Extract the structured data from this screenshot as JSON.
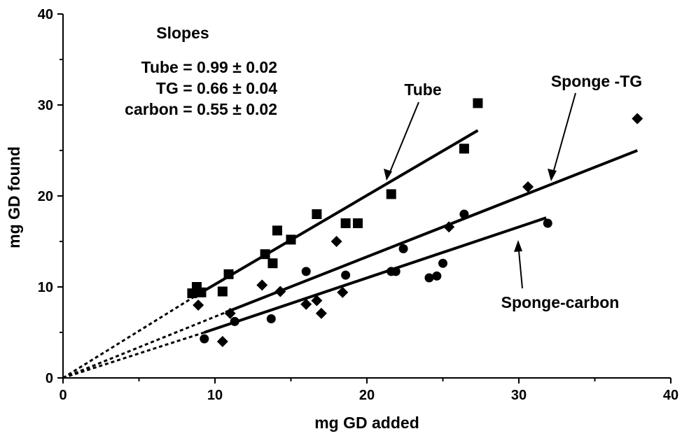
{
  "chart_data": {
    "type": "scatter",
    "title": "",
    "xlabel": "mg GD added",
    "ylabel": "mg GD found",
    "xlim": [
      0,
      40
    ],
    "ylim": [
      0,
      40
    ],
    "xticks": [
      0,
      10,
      20,
      30,
      40
    ],
    "yticks": [
      0,
      10,
      20,
      30,
      40
    ],
    "grid": false,
    "legend": "none",
    "annotation": {
      "heading": "Slopes",
      "lines": [
        "Tube = 0.99 ± 0.02",
        "TG = 0.66 ± 0.04",
        "carbon = 0.55 ± 0.02"
      ]
    },
    "series": [
      {
        "name": "Tube",
        "marker": "square",
        "points": [
          [
            8.5,
            9.3
          ],
          [
            8.8,
            10.0
          ],
          [
            9.1,
            9.4
          ],
          [
            10.5,
            9.5
          ],
          [
            10.9,
            11.4
          ],
          [
            13.3,
            13.6
          ],
          [
            13.8,
            12.6
          ],
          [
            14.1,
            16.2
          ],
          [
            15.0,
            15.2
          ],
          [
            16.7,
            18.0
          ],
          [
            18.6,
            17.0
          ],
          [
            19.4,
            17.0
          ],
          [
            21.6,
            20.2
          ],
          [
            26.4,
            25.2
          ],
          [
            27.3,
            30.2
          ]
        ],
        "fit": {
          "x": [
            9.0,
            27.3
          ],
          "y": [
            9.3,
            27.2
          ],
          "dashed_to_origin": true
        },
        "label_pos": "upper middle"
      },
      {
        "name": "Sponge -TG",
        "marker": "diamond",
        "points": [
          [
            8.9,
            8.0
          ],
          [
            10.5,
            4.0
          ],
          [
            11.0,
            7.1
          ],
          [
            13.1,
            10.2
          ],
          [
            14.3,
            9.5
          ],
          [
            16.0,
            8.1
          ],
          [
            16.7,
            8.5
          ],
          [
            17.0,
            7.1
          ],
          [
            18.0,
            15.0
          ],
          [
            18.4,
            9.4
          ],
          [
            25.4,
            16.6
          ],
          [
            30.6,
            21.0
          ],
          [
            37.8,
            28.5
          ]
        ],
        "fit": {
          "x": [
            10.7,
            37.8
          ],
          "y": [
            7.2,
            25.0
          ],
          "dashed_to_origin": true
        },
        "label_pos": "upper right"
      },
      {
        "name": "Sponge-carbon",
        "marker": "circle",
        "points": [
          [
            9.3,
            4.3
          ],
          [
            11.3,
            6.2
          ],
          [
            13.7,
            6.5
          ],
          [
            16.0,
            11.7
          ],
          [
            18.6,
            11.3
          ],
          [
            21.6,
            11.7
          ],
          [
            21.9,
            11.7
          ],
          [
            22.4,
            14.2
          ],
          [
            24.1,
            11.0
          ],
          [
            24.6,
            11.2
          ],
          [
            25.0,
            12.6
          ],
          [
            26.4,
            18.0
          ],
          [
            31.9,
            17.0
          ]
        ],
        "fit": {
          "x": [
            9.3,
            31.8
          ],
          "y": [
            5.0,
            17.6
          ],
          "dashed_to_origin": true
        },
        "label_pos": "lower right"
      }
    ]
  }
}
